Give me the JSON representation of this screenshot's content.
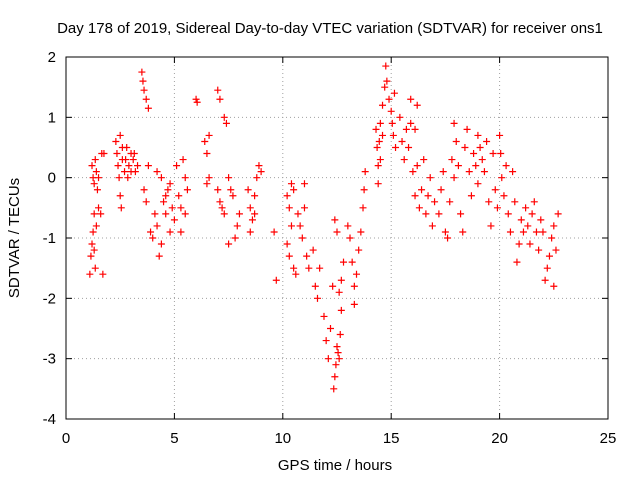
{
  "chart_data": {
    "type": "scatter",
    "title": "Day 178 of 2019, Sidereal Day-to-day VTEC variation (SDTVAR) for receiver ons1",
    "xlabel": "GPS time / hours",
    "ylabel": "SDTVAR / TECUs",
    "xlim": [
      0,
      25
    ],
    "ylim": [
      -4,
      2
    ],
    "xticks": [
      0,
      5,
      10,
      15,
      20,
      25
    ],
    "yticks": [
      -4,
      -3,
      -2,
      -1,
      0,
      1,
      2
    ],
    "grid": true,
    "marker": "+",
    "color": "#ff0000",
    "series": [
      {
        "name": "SDTVAR",
        "points": [
          [
            1.1,
            -1.6
          ],
          [
            1.15,
            -1.3
          ],
          [
            1.2,
            -1.1
          ],
          [
            1.25,
            -0.9
          ],
          [
            1.3,
            -1.2
          ],
          [
            1.35,
            -1.5
          ],
          [
            1.2,
            0.2
          ],
          [
            1.25,
            0.0
          ],
          [
            1.3,
            -0.1
          ],
          [
            1.35,
            0.3
          ],
          [
            1.4,
            0.1
          ],
          [
            1.45,
            -0.2
          ],
          [
            1.5,
            0.0
          ],
          [
            1.3,
            -0.6
          ],
          [
            1.4,
            -0.8
          ],
          [
            1.5,
            -0.5
          ],
          [
            1.6,
            -0.6
          ],
          [
            1.7,
            -1.6
          ],
          [
            1.65,
            0.4
          ],
          [
            1.75,
            0.4
          ],
          [
            2.3,
            0.6
          ],
          [
            2.35,
            0.4
          ],
          [
            2.4,
            0.2
          ],
          [
            2.45,
            0.0
          ],
          [
            2.5,
            -0.3
          ],
          [
            2.55,
            -0.5
          ],
          [
            2.6,
            0.3
          ],
          [
            2.7,
            0.1
          ],
          [
            2.8,
            0.5
          ],
          [
            2.9,
            0.2
          ],
          [
            3.0,
            0.4
          ],
          [
            3.1,
            0.3
          ],
          [
            3.2,
            0.1
          ],
          [
            3.3,
            0.2
          ],
          [
            2.5,
            0.7
          ],
          [
            2.6,
            0.5
          ],
          [
            2.75,
            0.3
          ],
          [
            2.85,
            0.0
          ],
          [
            3.0,
            0.1
          ],
          [
            3.15,
            0.4
          ],
          [
            3.5,
            1.75
          ],
          [
            3.55,
            1.6
          ],
          [
            3.6,
            1.45
          ],
          [
            3.7,
            1.3
          ],
          [
            3.8,
            1.15
          ],
          [
            3.6,
            -0.2
          ],
          [
            3.7,
            -0.4
          ],
          [
            3.8,
            0.2
          ],
          [
            3.9,
            -0.9
          ],
          [
            4.0,
            -1.0
          ],
          [
            4.1,
            -0.6
          ],
          [
            4.2,
            -0.8
          ],
          [
            4.3,
            -1.3
          ],
          [
            4.4,
            -1.1
          ],
          [
            4.5,
            -0.4
          ],
          [
            4.6,
            -0.6
          ],
          [
            4.7,
            -0.2
          ],
          [
            4.8,
            -0.9
          ],
          [
            4.9,
            -0.5
          ],
          [
            5.0,
            -0.7
          ],
          [
            4.2,
            0.1
          ],
          [
            4.4,
            0.0
          ],
          [
            4.6,
            -0.3
          ],
          [
            4.8,
            -0.1
          ],
          [
            5.1,
            0.2
          ],
          [
            5.2,
            -0.3
          ],
          [
            5.3,
            -0.5
          ],
          [
            5.4,
            0.3
          ],
          [
            5.5,
            0.0
          ],
          [
            5.6,
            -0.2
          ],
          [
            5.3,
            -0.9
          ],
          [
            5.5,
            -0.6
          ],
          [
            6.0,
            1.3
          ],
          [
            6.05,
            1.25
          ],
          [
            6.4,
            0.6
          ],
          [
            6.5,
            0.4
          ],
          [
            6.6,
            0.7
          ],
          [
            6.5,
            -0.1
          ],
          [
            6.6,
            0.0
          ],
          [
            7.0,
            1.45
          ],
          [
            7.1,
            1.3
          ],
          [
            7.3,
            1.0
          ],
          [
            7.4,
            0.9
          ],
          [
            7.0,
            -0.2
          ],
          [
            7.1,
            -0.4
          ],
          [
            7.2,
            -0.5
          ],
          [
            7.3,
            -0.6
          ],
          [
            7.5,
            0.0
          ],
          [
            7.6,
            -0.2
          ],
          [
            7.7,
            -0.3
          ],
          [
            7.8,
            -1.0
          ],
          [
            7.9,
            -0.8
          ],
          [
            8.0,
            -0.6
          ],
          [
            7.5,
            -1.1
          ],
          [
            8.4,
            -0.2
          ],
          [
            8.5,
            -0.5
          ],
          [
            8.6,
            -0.7
          ],
          [
            8.7,
            -0.3
          ],
          [
            8.8,
            0.0
          ],
          [
            8.9,
            0.2
          ],
          [
            8.5,
            -0.9
          ],
          [
            8.7,
            -0.6
          ],
          [
            9.0,
            0.1
          ],
          [
            9.6,
            -0.9
          ],
          [
            9.7,
            -1.7
          ],
          [
            10.2,
            -1.1
          ],
          [
            10.3,
            -1.3
          ],
          [
            10.4,
            -0.8
          ],
          [
            10.5,
            -1.5
          ],
          [
            10.6,
            -1.6
          ],
          [
            10.2,
            -0.3
          ],
          [
            10.3,
            -0.5
          ],
          [
            10.4,
            -0.1
          ],
          [
            10.5,
            -0.2
          ],
          [
            10.7,
            -0.6
          ],
          [
            10.8,
            -0.8
          ],
          [
            10.9,
            -1.0
          ],
          [
            11.0,
            -0.5
          ],
          [
            11.1,
            -1.3
          ],
          [
            11.2,
            -1.5
          ],
          [
            11.4,
            -1.2
          ],
          [
            11.5,
            -1.8
          ],
          [
            11.6,
            -2.0
          ],
          [
            11.7,
            -1.5
          ],
          [
            11.0,
            -0.1
          ],
          [
            11.9,
            -2.3
          ],
          [
            12.0,
            -2.7
          ],
          [
            12.1,
            -3.0
          ],
          [
            12.2,
            -2.5
          ],
          [
            12.3,
            -1.8
          ],
          [
            12.35,
            -3.5
          ],
          [
            12.4,
            -3.3
          ],
          [
            12.45,
            -3.1
          ],
          [
            12.5,
            -2.8
          ],
          [
            12.55,
            -2.9
          ],
          [
            12.6,
            -3.0
          ],
          [
            12.65,
            -2.6
          ],
          [
            12.7,
            -2.2
          ],
          [
            12.4,
            -0.7
          ],
          [
            12.5,
            -0.9
          ],
          [
            12.6,
            -1.9
          ],
          [
            12.7,
            -1.7
          ],
          [
            12.8,
            -1.4
          ],
          [
            13.0,
            -0.8
          ],
          [
            13.1,
            -1.0
          ],
          [
            13.2,
            -1.4
          ],
          [
            13.3,
            -1.8
          ],
          [
            13.4,
            -1.6
          ],
          [
            13.5,
            -1.2
          ],
          [
            13.6,
            -0.9
          ],
          [
            13.7,
            -0.5
          ],
          [
            13.75,
            -0.2
          ],
          [
            13.8,
            0.1
          ],
          [
            13.3,
            -2.1
          ],
          [
            14.3,
            0.8
          ],
          [
            14.35,
            0.5
          ],
          [
            14.4,
            0.2
          ],
          [
            14.45,
            0.6
          ],
          [
            14.5,
            0.9
          ],
          [
            14.6,
            1.2
          ],
          [
            14.7,
            1.5
          ],
          [
            14.75,
            1.85
          ],
          [
            14.8,
            1.6
          ],
          [
            14.9,
            1.3
          ],
          [
            15.0,
            1.1
          ],
          [
            15.05,
            0.9
          ],
          [
            15.1,
            0.7
          ],
          [
            15.15,
            1.4
          ],
          [
            15.2,
            0.5
          ],
          [
            14.4,
            -0.1
          ],
          [
            14.5,
            0.3
          ],
          [
            14.6,
            0.7
          ],
          [
            15.4,
            1.0
          ],
          [
            15.5,
            0.6
          ],
          [
            15.6,
            0.3
          ],
          [
            15.7,
            0.8
          ],
          [
            15.8,
            0.5
          ],
          [
            15.9,
            0.9
          ],
          [
            16.0,
            0.1
          ],
          [
            16.1,
            -0.3
          ],
          [
            16.2,
            0.2
          ],
          [
            16.3,
            -0.5
          ],
          [
            16.4,
            -0.2
          ],
          [
            16.5,
            0.3
          ],
          [
            16.6,
            -0.6
          ],
          [
            16.7,
            -0.3
          ],
          [
            16.8,
            0.0
          ],
          [
            16.9,
            -0.8
          ],
          [
            17.0,
            -0.4
          ],
          [
            16.2,
            1.2
          ],
          [
            15.9,
            1.3
          ],
          [
            16.1,
            0.8
          ],
          [
            17.2,
            -0.6
          ],
          [
            17.3,
            -0.2
          ],
          [
            17.4,
            0.1
          ],
          [
            17.5,
            -0.9
          ],
          [
            17.6,
            -1.0
          ],
          [
            17.7,
            -0.4
          ],
          [
            17.8,
            0.3
          ],
          [
            17.9,
            0.9
          ],
          [
            18.0,
            0.6
          ],
          [
            18.1,
            0.2
          ],
          [
            18.2,
            -0.6
          ],
          [
            18.3,
            -0.9
          ],
          [
            18.4,
            0.5
          ],
          [
            18.5,
            0.8
          ],
          [
            18.6,
            0.1
          ],
          [
            18.7,
            -0.3
          ],
          [
            18.8,
            0.4
          ],
          [
            18.9,
            0.2
          ],
          [
            19.0,
            -0.1
          ],
          [
            17.9,
            0.0
          ],
          [
            19.0,
            0.7
          ],
          [
            19.1,
            0.5
          ],
          [
            19.2,
            0.3
          ],
          [
            19.3,
            0.1
          ],
          [
            19.4,
            0.6
          ],
          [
            19.5,
            -0.4
          ],
          [
            19.6,
            -0.8
          ],
          [
            19.7,
            0.4
          ],
          [
            19.8,
            -0.2
          ],
          [
            19.9,
            -0.5
          ],
          [
            20.0,
            0.7
          ],
          [
            20.05,
            0.4
          ],
          [
            20.1,
            0.0
          ],
          [
            20.2,
            -0.3
          ],
          [
            20.3,
            0.2
          ],
          [
            20.4,
            -0.6
          ],
          [
            20.5,
            -0.9
          ],
          [
            20.6,
            0.1
          ],
          [
            20.7,
            -0.4
          ],
          [
            20.8,
            -1.4
          ],
          [
            20.9,
            -1.1
          ],
          [
            21.0,
            -0.7
          ],
          [
            21.1,
            -0.9
          ],
          [
            21.2,
            -0.5
          ],
          [
            21.3,
            -0.8
          ],
          [
            21.4,
            -1.1
          ],
          [
            21.5,
            -0.6
          ],
          [
            21.6,
            -0.4
          ],
          [
            21.7,
            -0.9
          ],
          [
            21.8,
            -1.2
          ],
          [
            21.9,
            -0.7
          ],
          [
            22.0,
            -0.9
          ],
          [
            22.1,
            -1.7
          ],
          [
            22.2,
            -1.5
          ],
          [
            22.3,
            -1.3
          ],
          [
            22.4,
            -1.0
          ],
          [
            22.5,
            -0.8
          ],
          [
            22.6,
            -1.2
          ],
          [
            22.7,
            -0.6
          ],
          [
            22.5,
            -1.8
          ]
        ]
      }
    ]
  }
}
